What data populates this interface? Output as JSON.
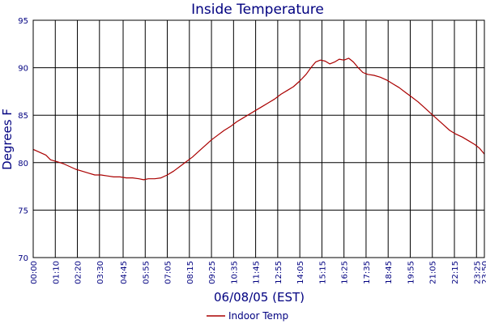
{
  "chart_data": {
    "type": "line",
    "title": "Inside Temperature",
    "xlabel": "06/08/05 (EST)",
    "ylabel": "Degrees F",
    "ylim": [
      70,
      95
    ],
    "y_ticks": [
      70,
      75,
      80,
      85,
      90,
      95
    ],
    "x_ticks": [
      "00:00",
      "01:10",
      "02:20",
      "03:30",
      "04:45",
      "05:55",
      "07:05",
      "08:15",
      "09:25",
      "10:35",
      "11:45",
      "12:55",
      "14:05",
      "15:15",
      "16:25",
      "17:35",
      "18:45",
      "19:55",
      "21:05",
      "22:15",
      "23:25",
      "23:50"
    ],
    "x_tick_minutes": [
      0,
      70,
      140,
      210,
      285,
      355,
      425,
      495,
      565,
      635,
      705,
      775,
      845,
      915,
      985,
      1055,
      1125,
      1195,
      1265,
      1335,
      1405,
      1430
    ],
    "xlim_minutes": [
      0,
      1430
    ],
    "grid": true,
    "legend_position": "bottom-center",
    "series": [
      {
        "name": "Indoor Temp",
        "color": "#aa0000",
        "points": [
          [
            0,
            81.4
          ],
          [
            20,
            81.1
          ],
          [
            40,
            80.8
          ],
          [
            55,
            80.3
          ],
          [
            75,
            80.1
          ],
          [
            95,
            79.9
          ],
          [
            115,
            79.6
          ],
          [
            135,
            79.3
          ],
          [
            155,
            79.1
          ],
          [
            175,
            78.9
          ],
          [
            195,
            78.7
          ],
          [
            215,
            78.7
          ],
          [
            235,
            78.6
          ],
          [
            255,
            78.5
          ],
          [
            275,
            78.5
          ],
          [
            295,
            78.4
          ],
          [
            315,
            78.4
          ],
          [
            335,
            78.3
          ],
          [
            350,
            78.2
          ],
          [
            365,
            78.3
          ],
          [
            385,
            78.3
          ],
          [
            405,
            78.4
          ],
          [
            425,
            78.7
          ],
          [
            445,
            79.1
          ],
          [
            465,
            79.6
          ],
          [
            485,
            80.1
          ],
          [
            505,
            80.6
          ],
          [
            525,
            81.2
          ],
          [
            545,
            81.8
          ],
          [
            565,
            82.4
          ],
          [
            585,
            82.9
          ],
          [
            605,
            83.4
          ],
          [
            625,
            83.8
          ],
          [
            645,
            84.3
          ],
          [
            665,
            84.7
          ],
          [
            685,
            85.1
          ],
          [
            705,
            85.5
          ],
          [
            725,
            85.9
          ],
          [
            745,
            86.3
          ],
          [
            765,
            86.7
          ],
          [
            785,
            87.2
          ],
          [
            805,
            87.6
          ],
          [
            825,
            88.0
          ],
          [
            845,
            88.6
          ],
          [
            865,
            89.3
          ],
          [
            880,
            90.0
          ],
          [
            895,
            90.6
          ],
          [
            910,
            90.8
          ],
          [
            925,
            90.7
          ],
          [
            940,
            90.4
          ],
          [
            955,
            90.6
          ],
          [
            970,
            90.9
          ],
          [
            985,
            90.8
          ],
          [
            1000,
            91.0
          ],
          [
            1015,
            90.6
          ],
          [
            1030,
            90.0
          ],
          [
            1045,
            89.5
          ],
          [
            1060,
            89.3
          ],
          [
            1080,
            89.2
          ],
          [
            1100,
            89.0
          ],
          [
            1120,
            88.7
          ],
          [
            1140,
            88.3
          ],
          [
            1160,
            87.9
          ],
          [
            1180,
            87.4
          ],
          [
            1200,
            86.9
          ],
          [
            1220,
            86.4
          ],
          [
            1240,
            85.8
          ],
          [
            1260,
            85.2
          ],
          [
            1280,
            84.6
          ],
          [
            1300,
            84.0
          ],
          [
            1320,
            83.4
          ],
          [
            1340,
            83.0
          ],
          [
            1360,
            82.7
          ],
          [
            1380,
            82.3
          ],
          [
            1400,
            81.9
          ],
          [
            1415,
            81.5
          ],
          [
            1430,
            80.9
          ]
        ]
      }
    ]
  }
}
